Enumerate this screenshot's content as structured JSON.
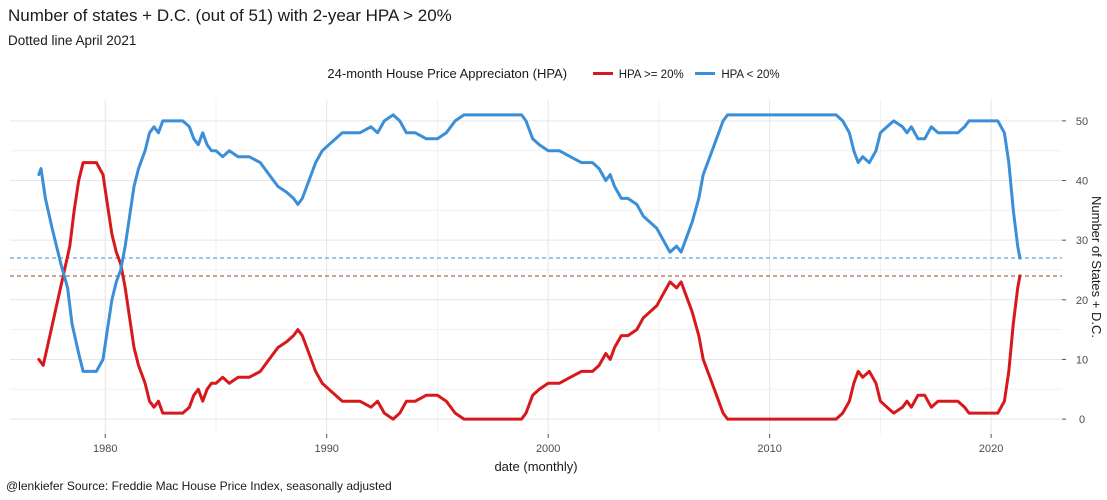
{
  "title": "Number of states + D.C. (out of 51) with 2-year HPA > 20%",
  "subtitle": "Dotted line April 2021",
  "caption": "@lenkiefer Source: Freddie Mac House Price Index, seasonally adjusted",
  "legend": {
    "title": "24-month House Price Appreciaton (HPA)",
    "items": [
      {
        "label": "HPA >= 20%",
        "color": "#d7191c"
      },
      {
        "label": "HPA < 20%",
        "color": "#3a8fd8"
      }
    ]
  },
  "chart_data": {
    "type": "line",
    "xlabel": "date (monthly)",
    "ylabel": "Number of States + D.C.",
    "x_ticks": [
      "1980",
      "1990",
      "2000",
      "2010",
      "2020"
    ],
    "y_ticks": [
      0,
      10,
      20,
      30,
      40,
      50
    ],
    "xlim": [
      1975.7,
      2023.2
    ],
    "ylim": [
      -2.5,
      53.5
    ],
    "y_axis_position": "right",
    "grid": true,
    "legend_position": "top",
    "reference_lines": [
      {
        "y": 24,
        "color": "#b03a2e",
        "style": "dashed"
      },
      {
        "y": 27,
        "color": "#3a8fd8",
        "style": "dashed"
      }
    ],
    "series": [
      {
        "name": "HPA >= 20%",
        "color": "#d7191c",
        "points": [
          [
            1977.0,
            10
          ],
          [
            1977.2,
            9
          ],
          [
            1977.5,
            14
          ],
          [
            1977.8,
            19
          ],
          [
            1978.1,
            24
          ],
          [
            1978.4,
            29
          ],
          [
            1978.6,
            35
          ],
          [
            1978.8,
            40
          ],
          [
            1979.0,
            43
          ],
          [
            1979.3,
            43
          ],
          [
            1979.6,
            43
          ],
          [
            1979.9,
            41
          ],
          [
            1980.1,
            36
          ],
          [
            1980.3,
            31
          ],
          [
            1980.5,
            28
          ],
          [
            1980.7,
            26
          ],
          [
            1980.9,
            22
          ],
          [
            1981.1,
            17
          ],
          [
            1981.3,
            12
          ],
          [
            1981.5,
            9
          ],
          [
            1981.8,
            6
          ],
          [
            1982.0,
            3
          ],
          [
            1982.2,
            2
          ],
          [
            1982.4,
            3
          ],
          [
            1982.6,
            1
          ],
          [
            1983.0,
            1
          ],
          [
            1983.5,
            1
          ],
          [
            1983.8,
            2
          ],
          [
            1984.0,
            4
          ],
          [
            1984.2,
            5
          ],
          [
            1984.4,
            3
          ],
          [
            1984.6,
            5
          ],
          [
            1984.8,
            6
          ],
          [
            1985.0,
            6
          ],
          [
            1985.3,
            7
          ],
          [
            1985.6,
            6
          ],
          [
            1986.0,
            7
          ],
          [
            1986.5,
            7
          ],
          [
            1987.0,
            8
          ],
          [
            1987.4,
            10
          ],
          [
            1987.8,
            12
          ],
          [
            1988.2,
            13
          ],
          [
            1988.5,
            14
          ],
          [
            1988.7,
            15
          ],
          [
            1988.9,
            14
          ],
          [
            1989.2,
            11
          ],
          [
            1989.5,
            8
          ],
          [
            1989.8,
            6
          ],
          [
            1990.1,
            5
          ],
          [
            1990.4,
            4
          ],
          [
            1990.7,
            3
          ],
          [
            1991.0,
            3
          ],
          [
            1991.5,
            3
          ],
          [
            1992.0,
            2
          ],
          [
            1992.3,
            3
          ],
          [
            1992.6,
            1
          ],
          [
            1993.0,
            0
          ],
          [
            1993.3,
            1
          ],
          [
            1993.6,
            3
          ],
          [
            1994.0,
            3
          ],
          [
            1994.5,
            4
          ],
          [
            1995.0,
            4
          ],
          [
            1995.4,
            3
          ],
          [
            1995.8,
            1
          ],
          [
            1996.2,
            0
          ],
          [
            1997.0,
            0
          ],
          [
            1998.0,
            0
          ],
          [
            1998.8,
            0
          ],
          [
            1999.0,
            1
          ],
          [
            1999.3,
            4
          ],
          [
            1999.6,
            5
          ],
          [
            2000.0,
            6
          ],
          [
            2000.5,
            6
          ],
          [
            2001.0,
            7
          ],
          [
            2001.5,
            8
          ],
          [
            2002.0,
            8
          ],
          [
            2002.3,
            9
          ],
          [
            2002.6,
            11
          ],
          [
            2002.8,
            10
          ],
          [
            2003.0,
            12
          ],
          [
            2003.3,
            14
          ],
          [
            2003.6,
            14
          ],
          [
            2004.0,
            15
          ],
          [
            2004.3,
            17
          ],
          [
            2004.6,
            18
          ],
          [
            2004.9,
            19
          ],
          [
            2005.2,
            21
          ],
          [
            2005.5,
            23
          ],
          [
            2005.8,
            22
          ],
          [
            2006.0,
            23
          ],
          [
            2006.2,
            21
          ],
          [
            2006.5,
            18
          ],
          [
            2006.8,
            14
          ],
          [
            2007.0,
            10
          ],
          [
            2007.3,
            7
          ],
          [
            2007.6,
            4
          ],
          [
            2007.9,
            1
          ],
          [
            2008.1,
            0
          ],
          [
            2009.0,
            0
          ],
          [
            2010.0,
            0
          ],
          [
            2011.0,
            0
          ],
          [
            2012.0,
            0
          ],
          [
            2013.0,
            0
          ],
          [
            2013.3,
            1
          ],
          [
            2013.6,
            3
          ],
          [
            2013.8,
            6
          ],
          [
            2014.0,
            8
          ],
          [
            2014.2,
            7
          ],
          [
            2014.5,
            8
          ],
          [
            2014.8,
            6
          ],
          [
            2015.0,
            3
          ],
          [
            2015.3,
            2
          ],
          [
            2015.6,
            1
          ],
          [
            2016.0,
            2
          ],
          [
            2016.2,
            3
          ],
          [
            2016.4,
            2
          ],
          [
            2016.7,
            4
          ],
          [
            2017.0,
            4
          ],
          [
            2017.3,
            2
          ],
          [
            2017.6,
            3
          ],
          [
            2018.0,
            3
          ],
          [
            2018.5,
            3
          ],
          [
            2018.8,
            2
          ],
          [
            2019.0,
            1
          ],
          [
            2019.5,
            1
          ],
          [
            2020.0,
            1
          ],
          [
            2020.3,
            1
          ],
          [
            2020.6,
            3
          ],
          [
            2020.8,
            8
          ],
          [
            2021.0,
            16
          ],
          [
            2021.2,
            22
          ],
          [
            2021.3,
            24
          ]
        ]
      },
      {
        "name": "HPA < 20%",
        "color": "#3a8fd8",
        "points": [
          [
            1977.0,
            41
          ],
          [
            1977.1,
            42
          ],
          [
            1977.3,
            37
          ],
          [
            1977.6,
            32
          ],
          [
            1977.8,
            29
          ],
          [
            1978.0,
            26
          ],
          [
            1978.3,
            22
          ],
          [
            1978.5,
            16
          ],
          [
            1978.8,
            11
          ],
          [
            1979.0,
            8
          ],
          [
            1979.3,
            8
          ],
          [
            1979.6,
            8
          ],
          [
            1979.9,
            10
          ],
          [
            1980.1,
            15
          ],
          [
            1980.3,
            20
          ],
          [
            1980.5,
            23
          ],
          [
            1980.7,
            25
          ],
          [
            1980.9,
            29
          ],
          [
            1981.1,
            34
          ],
          [
            1981.3,
            39
          ],
          [
            1981.5,
            42
          ],
          [
            1981.8,
            45
          ],
          [
            1982.0,
            48
          ],
          [
            1982.2,
            49
          ],
          [
            1982.4,
            48
          ],
          [
            1982.6,
            50
          ],
          [
            1983.0,
            50
          ],
          [
            1983.5,
            50
          ],
          [
            1983.8,
            49
          ],
          [
            1984.0,
            47
          ],
          [
            1984.2,
            46
          ],
          [
            1984.4,
            48
          ],
          [
            1984.6,
            46
          ],
          [
            1984.8,
            45
          ],
          [
            1985.0,
            45
          ],
          [
            1985.3,
            44
          ],
          [
            1985.6,
            45
          ],
          [
            1986.0,
            44
          ],
          [
            1986.5,
            44
          ],
          [
            1987.0,
            43
          ],
          [
            1987.4,
            41
          ],
          [
            1987.8,
            39
          ],
          [
            1988.2,
            38
          ],
          [
            1988.5,
            37
          ],
          [
            1988.7,
            36
          ],
          [
            1988.9,
            37
          ],
          [
            1989.2,
            40
          ],
          [
            1989.5,
            43
          ],
          [
            1989.8,
            45
          ],
          [
            1990.1,
            46
          ],
          [
            1990.4,
            47
          ],
          [
            1990.7,
            48
          ],
          [
            1991.0,
            48
          ],
          [
            1991.5,
            48
          ],
          [
            1992.0,
            49
          ],
          [
            1992.3,
            48
          ],
          [
            1992.6,
            50
          ],
          [
            1993.0,
            51
          ],
          [
            1993.3,
            50
          ],
          [
            1993.6,
            48
          ],
          [
            1994.0,
            48
          ],
          [
            1994.5,
            47
          ],
          [
            1995.0,
            47
          ],
          [
            1995.4,
            48
          ],
          [
            1995.8,
            50
          ],
          [
            1996.2,
            51
          ],
          [
            1997.0,
            51
          ],
          [
            1998.0,
            51
          ],
          [
            1998.8,
            51
          ],
          [
            1999.0,
            50
          ],
          [
            1999.3,
            47
          ],
          [
            1999.6,
            46
          ],
          [
            2000.0,
            45
          ],
          [
            2000.5,
            45
          ],
          [
            2001.0,
            44
          ],
          [
            2001.5,
            43
          ],
          [
            2002.0,
            43
          ],
          [
            2002.3,
            42
          ],
          [
            2002.6,
            40
          ],
          [
            2002.8,
            41
          ],
          [
            2003.0,
            39
          ],
          [
            2003.3,
            37
          ],
          [
            2003.6,
            37
          ],
          [
            2004.0,
            36
          ],
          [
            2004.3,
            34
          ],
          [
            2004.6,
            33
          ],
          [
            2004.9,
            32
          ],
          [
            2005.2,
            30
          ],
          [
            2005.5,
            28
          ],
          [
            2005.8,
            29
          ],
          [
            2006.0,
            28
          ],
          [
            2006.2,
            30
          ],
          [
            2006.5,
            33
          ],
          [
            2006.8,
            37
          ],
          [
            2007.0,
            41
          ],
          [
            2007.3,
            44
          ],
          [
            2007.6,
            47
          ],
          [
            2007.9,
            50
          ],
          [
            2008.1,
            51
          ],
          [
            2009.0,
            51
          ],
          [
            2010.0,
            51
          ],
          [
            2011.0,
            51
          ],
          [
            2012.0,
            51
          ],
          [
            2013.0,
            51
          ],
          [
            2013.3,
            50
          ],
          [
            2013.6,
            48
          ],
          [
            2013.8,
            45
          ],
          [
            2014.0,
            43
          ],
          [
            2014.2,
            44
          ],
          [
            2014.5,
            43
          ],
          [
            2014.8,
            45
          ],
          [
            2015.0,
            48
          ],
          [
            2015.3,
            49
          ],
          [
            2015.6,
            50
          ],
          [
            2016.0,
            49
          ],
          [
            2016.2,
            48
          ],
          [
            2016.4,
            49
          ],
          [
            2016.7,
            47
          ],
          [
            2017.0,
            47
          ],
          [
            2017.3,
            49
          ],
          [
            2017.6,
            48
          ],
          [
            2018.0,
            48
          ],
          [
            2018.5,
            48
          ],
          [
            2018.8,
            49
          ],
          [
            2019.0,
            50
          ],
          [
            2019.5,
            50
          ],
          [
            2020.0,
            50
          ],
          [
            2020.3,
            50
          ],
          [
            2020.6,
            48
          ],
          [
            2020.8,
            43
          ],
          [
            2021.0,
            35
          ],
          [
            2021.2,
            29
          ],
          [
            2021.3,
            27
          ]
        ]
      }
    ]
  }
}
